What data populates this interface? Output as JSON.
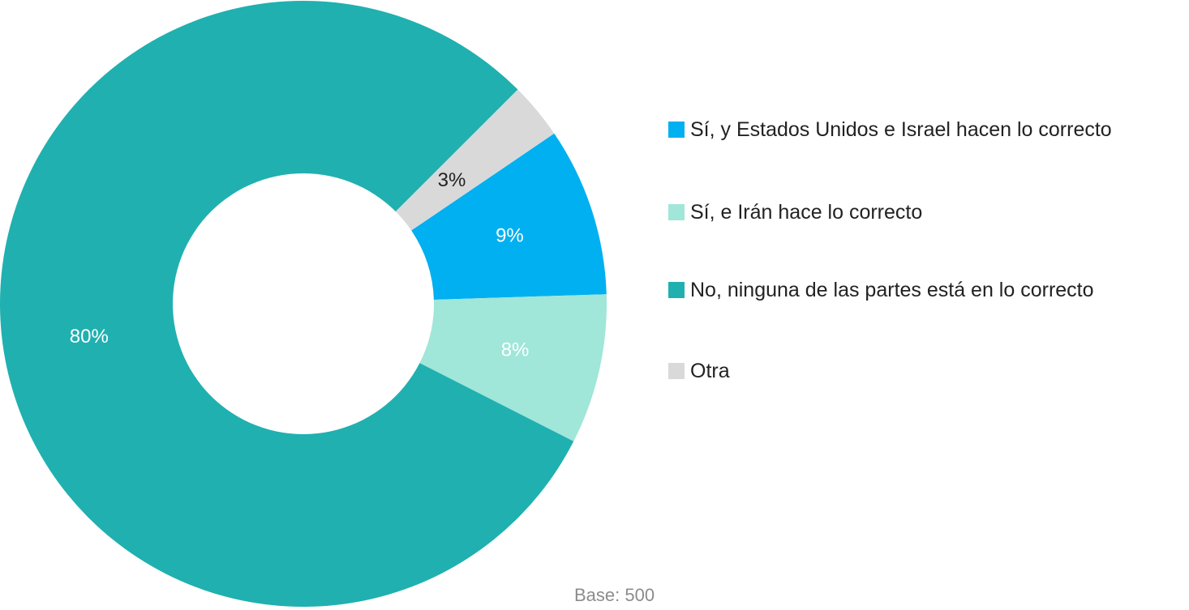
{
  "chart_data": {
    "type": "pie",
    "categories": [
      "Sí, y Estados Unidos e Israel hacen lo correcto",
      "Sí, e Irán hace lo correcto",
      "No, ninguna de las partes está en lo correcto",
      "Otra"
    ],
    "values": [
      9,
      8,
      80,
      3
    ],
    "value_labels": [
      "9%",
      "8%",
      "80%",
      "3%"
    ],
    "colors": [
      "#00b0f0",
      "#a0e6d9",
      "#20b0b0",
      "#d9d9d9"
    ],
    "annotation": "Base: 500"
  }
}
